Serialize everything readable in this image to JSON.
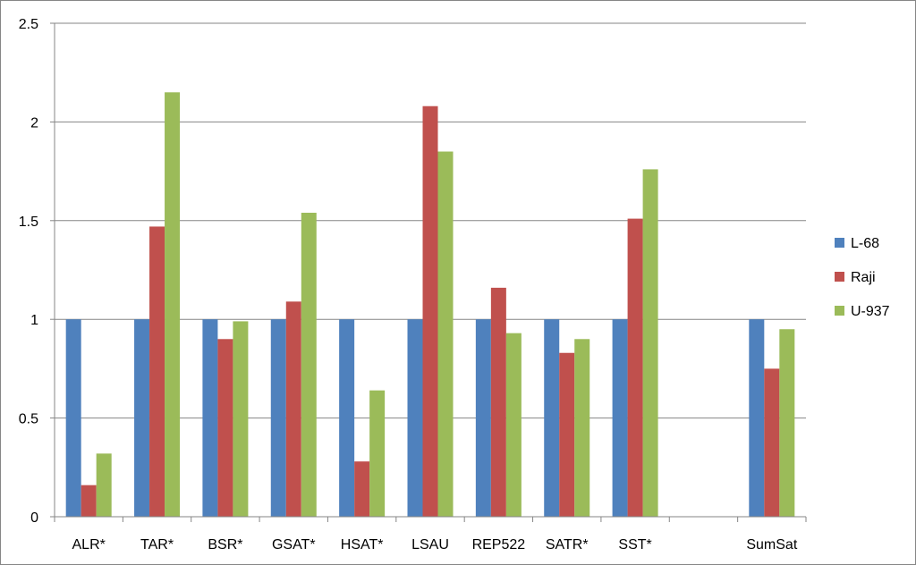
{
  "chart_data": {
    "type": "bar",
    "title": "",
    "xlabel": "",
    "ylabel": "",
    "categories": [
      "ALR*",
      "TAR*",
      "BSR*",
      "GSAT*",
      "HSAT*",
      "LSAU",
      "REP522",
      "SATR*",
      "SST*",
      "",
      "SumSat"
    ],
    "series": [
      {
        "name": "L-68",
        "color": "#4F81BD",
        "values": [
          1,
          1,
          1,
          1,
          1,
          1,
          1,
          1,
          1,
          null,
          1
        ]
      },
      {
        "name": "Raji",
        "color": "#C0504D",
        "values": [
          0.16,
          1.47,
          0.9,
          1.09,
          0.28,
          2.08,
          1.16,
          0.83,
          1.51,
          null,
          0.75
        ]
      },
      {
        "name": "U-937",
        "color": "#9BBB59",
        "values": [
          0.32,
          2.15,
          0.99,
          1.54,
          0.64,
          1.85,
          0.93,
          0.9,
          1.76,
          null,
          0.95
        ]
      }
    ],
    "ylim": [
      0,
      2.5
    ],
    "yticks": [
      "0",
      "0.5",
      "1",
      "1.5",
      "2",
      "2.5"
    ],
    "ytick_values": [
      0,
      0.5,
      1,
      1.5,
      2,
      2.5
    ],
    "grid": true,
    "legend": "right",
    "gridline_color": "#868686",
    "axis_color": "#868686"
  }
}
